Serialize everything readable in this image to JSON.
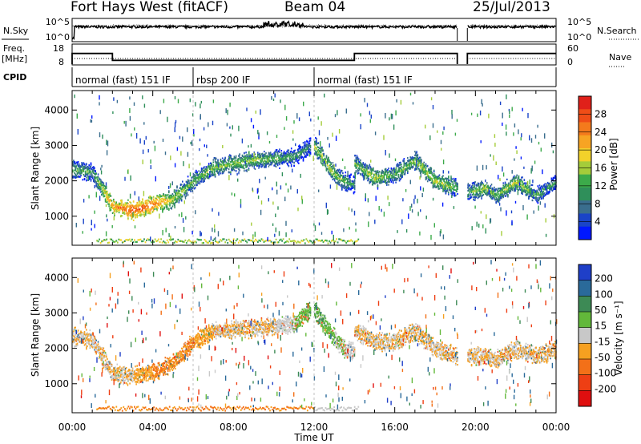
{
  "header": {
    "title": "Fort Hays West (fitACF)",
    "beam": "Beam 04",
    "date": "25/Jul/2013"
  },
  "strip_panels": {
    "nsky_label": "N.Sky",
    "nsearch_label": "N.Search",
    "noise_ticks": [
      "10^5",
      "10^0"
    ],
    "freq_label": "Freq.",
    "freq_unit": "[MHz]",
    "freq_ticks": [
      "18",
      "8"
    ],
    "nave_label": "Nave",
    "nave_ticks": [
      "60",
      "0"
    ],
    "cpid_label": "CPID",
    "cpid_segments": [
      {
        "name": "normal (fast) 151 IF",
        "start": 0.0,
        "end": 6.0
      },
      {
        "name": "rbsp 200 IF",
        "start": 6.0,
        "end": 12.0
      },
      {
        "name": "normal (fast) 151 IF",
        "start": 12.0,
        "end": 24.0
      }
    ],
    "freq_data": {
      "x": [
        0,
        2.0,
        2.0,
        14.0,
        14.0,
        19.1,
        19.6,
        24
      ],
      "mhz": [
        13.5,
        13.5,
        10.2,
        10.2,
        13.5,
        13.5,
        13.5,
        13.5
      ]
    },
    "data_gap": [
      19.1,
      19.6
    ]
  },
  "chart_data": [
    {
      "type": "heatmap",
      "name": "power",
      "x_range_hours": [
        0,
        24
      ],
      "ylabel": "Slant Range [km]",
      "y_ticks": [
        1000,
        2000,
        3000,
        4000
      ],
      "ylim": [
        180,
        4550
      ],
      "colorbar": {
        "label": "Power [dB]",
        "ticks": [
          4,
          8,
          12,
          16,
          20,
          24,
          28
        ],
        "range": [
          0,
          32
        ],
        "colors": [
          "#0018ff",
          "#1a44c8",
          "#3a6e8e",
          "#2f8f5a",
          "#3caa4a",
          "#a5cc3a",
          "#f2d22a",
          "#f7a423",
          "#f47a1c",
          "#ef4d17",
          "#e0201a"
        ]
      },
      "echo_bands": [
        {
          "hours": [
            0,
            1.0,
            2.0,
            3.0,
            4.0,
            5.0,
            6.0,
            7.0,
            8.0,
            9.0,
            10.0,
            11.0,
            11.8
          ],
          "range_km": [
            2350,
            2250,
            1300,
            1180,
            1350,
            1500,
            2000,
            2400,
            2500,
            2600,
            2650,
            2700,
            3000
          ],
          "power_db": [
            14,
            12,
            24,
            28,
            26,
            18,
            14,
            16,
            16,
            16,
            14,
            12,
            10
          ]
        },
        {
          "hours": [
            12.0,
            12.5,
            13.0,
            13.5,
            14.0
          ],
          "range_km": [
            3000,
            2600,
            2200,
            2000,
            1900
          ],
          "power_db": [
            16,
            18,
            16,
            14,
            10
          ]
        },
        {
          "hours": [
            14.0,
            15.0,
            16.0,
            17.0,
            18.0,
            19.1
          ],
          "range_km": [
            2500,
            2100,
            2200,
            2600,
            2000,
            1800
          ],
          "power_db": [
            14,
            18,
            14,
            16,
            18,
            14
          ]
        },
        {
          "hours": [
            19.6,
            20.5,
            21.0,
            22.0,
            23.0,
            24.0
          ],
          "range_km": [
            1700,
            1800,
            1600,
            2000,
            1600,
            2000
          ],
          "power_db": [
            12,
            18,
            14,
            18,
            14,
            12
          ]
        }
      ]
    },
    {
      "type": "heatmap",
      "name": "velocity",
      "x_range_hours": [
        0,
        24
      ],
      "xlabel": "Time UT",
      "x_ticks": [
        "00:00",
        "04:00",
        "08:00",
        "12:00",
        "16:00",
        "20:00",
        "00:00"
      ],
      "ylabel": "Slant Range [km]",
      "y_ticks": [
        1000,
        2000,
        3000,
        4000
      ],
      "ylim": [
        180,
        4550
      ],
      "colorbar": {
        "label": "Velocity [m s⁻¹]",
        "ticks": [
          200,
          100,
          50,
          15,
          -15,
          -50,
          -100,
          -200
        ],
        "colors": [
          "#1f3fc8",
          "#2a6a9a",
          "#3d8a55",
          "#62b83a",
          "#c8c8c8",
          "#f6a020",
          "#f37018",
          "#ee3f14",
          "#e00f0f"
        ]
      },
      "echo_bands": [
        {
          "hours": [
            0,
            1.0,
            2.0,
            3.0,
            4.0,
            5.0,
            6.0,
            7.0,
            8.0,
            9.0,
            10.0,
            11.0,
            11.8
          ],
          "range_km": [
            2350,
            2250,
            1300,
            1250,
            1350,
            1600,
            2200,
            2500,
            2550,
            2600,
            2650,
            2700,
            3100
          ],
          "velocity": [
            -15,
            -15,
            -15,
            -15,
            -50,
            -50,
            -50,
            -15,
            -15,
            -15,
            -15,
            15,
            50
          ]
        },
        {
          "hours": [
            12.0,
            12.5,
            13.0,
            13.5,
            14.0
          ],
          "range_km": [
            3100,
            2700,
            2300,
            2000,
            1900
          ],
          "velocity": [
            50,
            50,
            15,
            15,
            -15
          ]
        },
        {
          "hours": [
            14.0,
            15.0,
            16.0,
            17.0,
            18.0,
            19.1
          ],
          "range_km": [
            2500,
            2200,
            2200,
            2500,
            2000,
            1800
          ],
          "velocity": [
            -15,
            -15,
            -15,
            -15,
            -15,
            -15
          ]
        },
        {
          "hours": [
            19.6,
            20.5,
            21.0,
            22.0,
            23.0,
            24.0
          ],
          "range_km": [
            1800,
            1800,
            1700,
            2000,
            1800,
            2000
          ],
          "velocity": [
            -15,
            -15,
            -15,
            -15,
            -15,
            -15
          ]
        }
      ]
    }
  ]
}
